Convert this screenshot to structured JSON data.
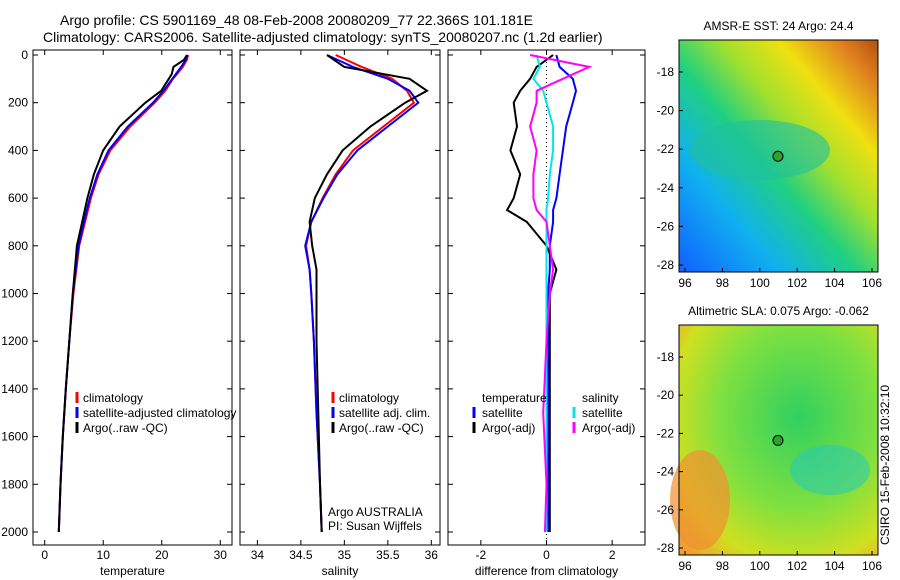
{
  "title_line1": "Argo profile: CS 5901169_48 08-Feb-2008 20080209_77 22.366S 101.181E",
  "title_line2": "Climatology: CARS2006. Satellite-adjusted climatology: synTS_20080207.nc (1.2d earlier)",
  "side_label": "CSIRO 15-Feb-2008 10:32:10",
  "colors": {
    "clim": "#ff0000",
    "sat": "#0000ff",
    "argo": "#000000",
    "sal_sat": "#00e5ee",
    "sal_argo": "#ff00ff"
  },
  "chart_data": [
    {
      "type": "line",
      "xlabel": "temperature",
      "ylabel": "",
      "xlim": [
        -2,
        32
      ],
      "ylim": [
        2000,
        0
      ],
      "xticks": [
        "0",
        "10",
        "20",
        "30"
      ],
      "yticks": [
        "0",
        "200",
        "400",
        "600",
        "800",
        "1000",
        "1200",
        "1400",
        "1600",
        "1800",
        "2000"
      ],
      "legend": [
        "climatology",
        "satellite-adjusted climatology",
        "Argo(..raw -QC)"
      ],
      "depth": [
        0,
        20,
        50,
        80,
        100,
        150,
        200,
        300,
        400,
        500,
        600,
        700,
        800,
        1000,
        1200,
        1400,
        1600,
        1800,
        2000
      ],
      "series": [
        {
          "name": "climatology",
          "values": [
            24.5,
            24.3,
            23.6,
            22.6,
            21.9,
            20.6,
            18.8,
            14.6,
            11.2,
            9.2,
            7.9,
            6.9,
            5.9,
            4.9,
            4.2,
            3.6,
            3.1,
            2.7,
            2.4
          ]
        },
        {
          "name": "satellite-adjusted climatology",
          "values": [
            24.4,
            24.1,
            23.3,
            22.4,
            21.8,
            20.3,
            18.5,
            14.2,
            10.9,
            9.0,
            7.7,
            6.7,
            5.8,
            4.8,
            4.2,
            3.6,
            3.1,
            2.7,
            2.4
          ]
        },
        {
          "name": "Argo(..raw -QC)",
          "values": [
            24.3,
            23.8,
            22.0,
            21.7,
            21.2,
            19.9,
            17.2,
            12.8,
            10.0,
            8.4,
            7.3,
            6.4,
            5.5,
            4.8,
            4.2,
            3.6,
            3.1,
            2.7,
            2.4
          ]
        }
      ]
    },
    {
      "type": "line",
      "xlabel": "salinity",
      "xlim": [
        33.8,
        36.1
      ],
      "ylim": [
        2000,
        0
      ],
      "xticks": [
        "34",
        "34.5",
        "35",
        "35.5",
        "36"
      ],
      "legend": [
        "climatology",
        "satellite adj. clim.",
        "Argo(..raw -QC)"
      ],
      "annotation": [
        "Argo AUSTRALIA",
        "PI: Susan Wijffels"
      ],
      "depth": [
        0,
        50,
        100,
        150,
        200,
        300,
        400,
        500,
        600,
        700,
        800,
        900,
        1000,
        1200,
        1500,
        1800,
        2000
      ],
      "series": [
        {
          "name": "climatology",
          "values": [
            34.9,
            35.2,
            35.55,
            35.72,
            35.8,
            35.45,
            35.1,
            34.9,
            34.75,
            34.62,
            34.56,
            34.6,
            34.62,
            34.65,
            34.68,
            34.72,
            34.74
          ]
        },
        {
          "name": "satellite adj. clim.",
          "values": [
            34.8,
            35.1,
            35.5,
            35.75,
            35.85,
            35.5,
            35.15,
            34.92,
            34.76,
            34.62,
            34.55,
            34.6,
            34.62,
            34.65,
            34.68,
            34.72,
            34.74
          ]
        },
        {
          "name": "Argo(..raw -QC)",
          "values": [
            34.8,
            35.0,
            35.75,
            35.95,
            35.7,
            35.3,
            34.98,
            34.8,
            34.66,
            34.6,
            34.63,
            34.68,
            34.68,
            34.68,
            34.7,
            34.72,
            34.74
          ]
        }
      ]
    },
    {
      "type": "line",
      "xlabel": "difference from climatology",
      "xlim": [
        -3,
        3
      ],
      "ylim": [
        2000,
        0
      ],
      "xticks": [
        "-2",
        "0",
        "2"
      ],
      "legend": [
        "temperature",
        "satellite",
        "Argo(-adj)",
        "salinity",
        "satellite",
        "Argo(-adj)"
      ],
      "depth": [
        0,
        50,
        100,
        150,
        200,
        300,
        400,
        500,
        600,
        650,
        700,
        800,
        900,
        1000,
        1200,
        1500,
        1800,
        2000
      ],
      "series": [
        {
          "name": "temperature satellite",
          "values": [
            0.3,
            0.4,
            0.8,
            0.9,
            0.8,
            0.6,
            0.5,
            0.4,
            0.3,
            0.2,
            0.2,
            0.1,
            0.1,
            0.05,
            0.05,
            0.05,
            0.05,
            0.05
          ]
        },
        {
          "name": "temperature Argo(-adj)",
          "values": [
            0.2,
            -0.3,
            -0.5,
            -0.8,
            -1.0,
            -0.9,
            -1.1,
            -0.8,
            -1.0,
            -1.2,
            -0.6,
            0.0,
            0.3,
            0.1,
            0.1,
            0.1,
            0.1,
            0.1
          ]
        },
        {
          "name": "salinity satellite",
          "values": [
            -0.3,
            -0.2,
            -0.4,
            -0.1,
            0.0,
            0.2,
            0.2,
            0.1,
            0.05,
            0.0,
            0.0,
            0.0,
            0.0,
            0.0,
            0.0,
            0.0,
            0.0,
            0.0
          ]
        },
        {
          "name": "salinity Argo(-adj)",
          "values": [
            -0.5,
            1.3,
            0.5,
            -0.3,
            -0.3,
            -0.5,
            -0.3,
            -0.4,
            -0.4,
            -0.3,
            0.0,
            0.1,
            0.2,
            0.1,
            0.0,
            -0.1,
            0.0,
            -0.05
          ]
        }
      ]
    }
  ],
  "maps": [
    {
      "title": "AMSR-E SST: 24 Argo: 24.4",
      "xticks": [
        "96",
        "98",
        "100",
        "102",
        "104",
        "106"
      ],
      "yticks": [
        "-18",
        "-20",
        "-22",
        "-24",
        "-26",
        "-28"
      ]
    },
    {
      "title": "Altimetric SLA: 0.075 Argo: -0.062",
      "xticks": [
        "96",
        "98",
        "100",
        "102",
        "104",
        "106"
      ],
      "yticks": [
        "-18",
        "-20",
        "-22",
        "-24",
        "-26",
        "-28"
      ]
    }
  ]
}
